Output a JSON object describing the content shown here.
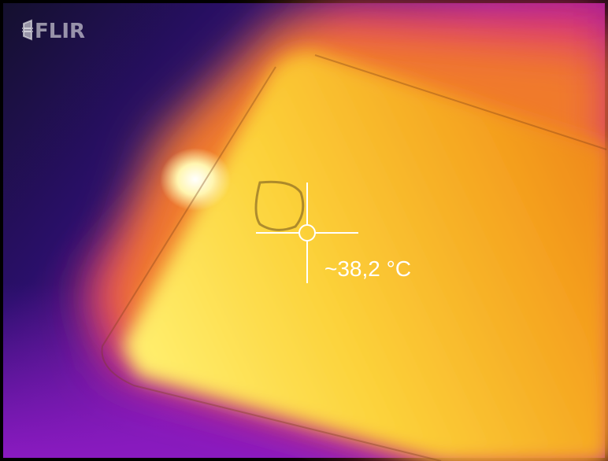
{
  "logo": "FLIR",
  "reading": "~38,2 °C"
}
